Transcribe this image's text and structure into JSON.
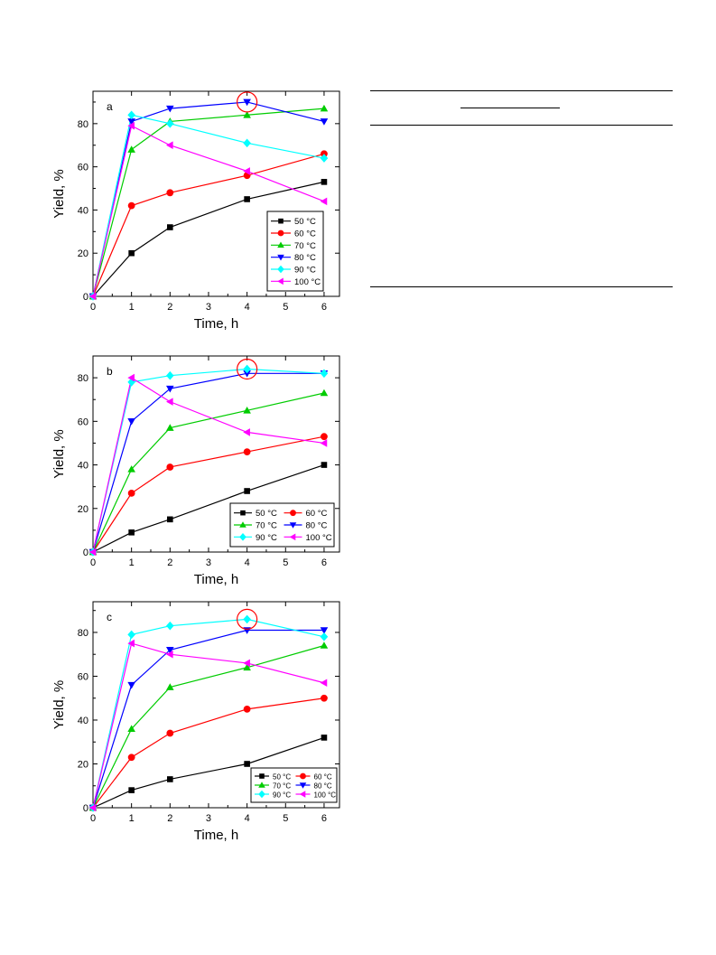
{
  "rules": [
    {
      "name": "table-top-rule"
    },
    {
      "name": "table-header-short-rule"
    },
    {
      "name": "table-header-bottom-rule"
    },
    {
      "name": "table-bottom-rule"
    }
  ],
  "chart_data": [
    {
      "panel_label": "a",
      "type": "line",
      "xlabel": "Time, h",
      "ylabel": "Yield, %",
      "xlim": [
        0,
        6.4
      ],
      "ylim": [
        0,
        95
      ],
      "xticks": [
        0,
        1,
        2,
        3,
        4,
        5,
        6
      ],
      "yticks": [
        0,
        20,
        40,
        60,
        80
      ],
      "x": [
        0,
        1,
        2,
        4,
        6
      ],
      "legend": {
        "placement": "bottom-right",
        "columns": 1
      },
      "highlight": {
        "x": 4,
        "y": 90,
        "shape": "red circle"
      },
      "series": [
        {
          "name": "50 °C",
          "color": "#000000",
          "marker": "square",
          "values": [
            0,
            20,
            32,
            45,
            53
          ]
        },
        {
          "name": "60 °C",
          "color": "#ff0000",
          "marker": "circle",
          "values": [
            0,
            42,
            48,
            56,
            66
          ]
        },
        {
          "name": "70 °C",
          "color": "#00cc00",
          "marker": "triangle-up",
          "values": [
            0,
            68,
            81,
            84,
            87
          ]
        },
        {
          "name": "80 °C",
          "color": "#0000ff",
          "marker": "triangle-down",
          "values": [
            0,
            81,
            87,
            90,
            81
          ]
        },
        {
          "name": "90 °C",
          "color": "#00ffff",
          "marker": "diamond",
          "values": [
            0,
            84,
            80,
            71,
            64
          ]
        },
        {
          "name": "100 °C",
          "color": "#ff00ff",
          "marker": "triangle-left",
          "values": [
            0,
            79,
            70,
            58,
            44
          ]
        }
      ]
    },
    {
      "panel_label": "b",
      "type": "line",
      "xlabel": "Time, h",
      "ylabel": "Yield, %",
      "xlim": [
        0,
        6.4
      ],
      "ylim": [
        0,
        90
      ],
      "xticks": [
        0,
        1,
        2,
        3,
        4,
        5,
        6
      ],
      "yticks": [
        0,
        20,
        40,
        60,
        80
      ],
      "x": [
        0,
        1,
        2,
        4,
        6
      ],
      "legend": {
        "placement": "bottom-right",
        "columns": 2
      },
      "highlight": {
        "x": 4,
        "y": 84,
        "shape": "red circle"
      },
      "series": [
        {
          "name": "50 °C",
          "color": "#000000",
          "marker": "square",
          "values": [
            0,
            9,
            15,
            28,
            40
          ]
        },
        {
          "name": "60 °C",
          "color": "#ff0000",
          "marker": "circle",
          "values": [
            0,
            27,
            39,
            46,
            53
          ]
        },
        {
          "name": "70 °C",
          "color": "#00cc00",
          "marker": "triangle-up",
          "values": [
            0,
            38,
            57,
            65,
            73
          ]
        },
        {
          "name": "80 °C",
          "color": "#0000ff",
          "marker": "triangle-down",
          "values": [
            0,
            60,
            75,
            82,
            82
          ]
        },
        {
          "name": "90 °C",
          "color": "#00ffff",
          "marker": "diamond",
          "values": [
            0,
            78,
            81,
            84,
            82
          ]
        },
        {
          "name": "100 °C",
          "color": "#ff00ff",
          "marker": "triangle-left",
          "values": [
            0,
            80,
            69,
            55,
            50
          ]
        }
      ]
    },
    {
      "panel_label": "c",
      "type": "line",
      "xlabel": "Time, h",
      "ylabel": "Yield, %",
      "xlim": [
        0,
        6.4
      ],
      "ylim": [
        0,
        94
      ],
      "xticks": [
        0,
        1,
        2,
        3,
        4,
        5,
        6
      ],
      "yticks": [
        0,
        20,
        40,
        60,
        80
      ],
      "x": [
        0,
        1,
        2,
        4,
        6
      ],
      "legend": {
        "placement": "bottom-right",
        "columns": 2
      },
      "highlight": {
        "x": 4,
        "y": 86,
        "shape": "red circle"
      },
      "series": [
        {
          "name": "50 °C",
          "color": "#000000",
          "marker": "square",
          "values": [
            0,
            8,
            13,
            20,
            32
          ]
        },
        {
          "name": "60 °C",
          "color": "#ff0000",
          "marker": "circle",
          "values": [
            0,
            23,
            34,
            45,
            50
          ]
        },
        {
          "name": "70 °C",
          "color": "#00cc00",
          "marker": "triangle-up",
          "values": [
            0,
            36,
            55,
            64,
            74
          ]
        },
        {
          "name": "80 °C",
          "color": "#0000ff",
          "marker": "triangle-down",
          "values": [
            0,
            56,
            72,
            81,
            81
          ]
        },
        {
          "name": "90 °C",
          "color": "#00ffff",
          "marker": "diamond",
          "values": [
            0,
            79,
            83,
            86,
            78
          ]
        },
        {
          "name": "100 °C",
          "color": "#ff00ff",
          "marker": "triangle-left",
          "values": [
            0,
            75,
            70,
            66,
            57
          ]
        }
      ]
    }
  ]
}
